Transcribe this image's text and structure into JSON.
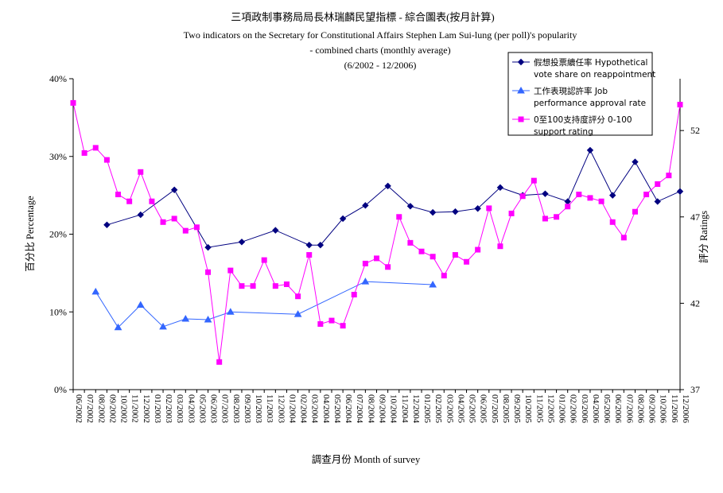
{
  "chart_data": {
    "type": "line",
    "title": "三項政制事務局局長林瑞麟民望指標 - 綜合圖表(按月計算)",
    "subtitle_lines": [
      "Two indicators on the Secretary for Constitutional Affairs Stephen Lam Sui-lung (per poll)'s popularity",
      "- combined charts (monthly average)",
      "(6/2002 - 12/2006)"
    ],
    "xlabel": "調查月份 Month of survey",
    "ylabel_left": "百分比 Percentage",
    "ylabel_right": "評分 Ratings",
    "y_left": {
      "min": 0,
      "max": 40,
      "ticks": [
        "0%",
        "10%",
        "20%",
        "30%",
        "40%"
      ],
      "tick_values": [
        0,
        10,
        20,
        30,
        40
      ]
    },
    "y_right": {
      "min": 37,
      "max": 55,
      "ticks": [
        "37",
        "42",
        "47",
        "52"
      ],
      "tick_values": [
        37,
        42,
        47,
        52
      ]
    },
    "grid": false,
    "legend_position": "top-right",
    "categories": [
      "06/2002",
      "07/2002",
      "08/2002",
      "09/2002",
      "10/2002",
      "11/2002",
      "12/2002",
      "01/2003",
      "02/2003",
      "03/2003",
      "04/2003",
      "05/2003",
      "06/2003",
      "07/2003",
      "08/2003",
      "09/2003",
      "10/2003",
      "11/2003",
      "12/2003",
      "01/2004",
      "02/2004",
      "03/2004",
      "04/2004",
      "05/2004",
      "06/2004",
      "07/2004",
      "08/2004",
      "09/2004",
      "10/2004",
      "11/2004",
      "12/2004",
      "01/2005",
      "02/2005",
      "03/2005",
      "04/2005",
      "05/2005",
      "06/2005",
      "07/2005",
      "08/2005",
      "09/2005",
      "10/2005",
      "11/2005",
      "12/2005",
      "01/2006",
      "02/2006",
      "03/2006",
      "04/2006",
      "05/2006",
      "06/2006",
      "07/2006",
      "08/2006",
      "09/2006",
      "10/2006",
      "11/2006",
      "12/2006"
    ],
    "series": [
      {
        "name": "假想投票續任率 Hypothetical vote share on reappointment",
        "axis": "left",
        "color": "#000080",
        "marker": "diamond",
        "values": [
          null,
          null,
          null,
          21.2,
          null,
          null,
          22.5,
          null,
          null,
          25.7,
          null,
          null,
          18.3,
          null,
          null,
          19,
          null,
          null,
          20.5,
          null,
          null,
          18.6,
          18.6,
          null,
          22,
          null,
          23.7,
          null,
          26.2,
          null,
          23.6,
          null,
          22.8,
          null,
          22.9,
          null,
          23.3,
          null,
          26,
          null,
          25,
          null,
          25.2,
          null,
          24.2,
          null,
          30.8,
          null,
          25,
          null,
          29.3,
          null,
          24.2,
          null,
          25.5
        ]
      },
      {
        "name": "工作表現認許率 Job performance approval rate",
        "axis": "left",
        "color": "#3366ff",
        "marker": "triangle",
        "values": [
          null,
          null,
          12.6,
          null,
          8,
          null,
          10.9,
          null,
          8.1,
          null,
          9.1,
          null,
          9,
          null,
          10,
          null,
          null,
          null,
          null,
          null,
          9.7,
          null,
          null,
          null,
          null,
          null,
          13.9,
          null,
          null,
          null,
          null,
          null,
          13.5,
          null,
          null,
          null,
          null,
          null,
          null,
          null,
          null,
          null,
          null,
          null,
          null,
          null,
          null,
          null,
          null,
          null,
          null,
          null,
          null,
          null,
          null
        ]
      },
      {
        "name": "0至100支持度評分 0-100 support rating",
        "axis": "right",
        "color": "#ff00ff",
        "marker": "square",
        "values": [
          53.6,
          50.7,
          51,
          50.3,
          48.3,
          47.9,
          49.6,
          47.9,
          46.7,
          46.9,
          46.2,
          46.4,
          43.8,
          38.6,
          43.9,
          43,
          43,
          44.5,
          43,
          43.1,
          42.4,
          44.8,
          40.8,
          41,
          40.7,
          42.5,
          44.3,
          44.6,
          44.1,
          47,
          45.5,
          45,
          44.7,
          43.6,
          44.8,
          44.4,
          45.1,
          47.5,
          45.3,
          47.2,
          48.2,
          49.1,
          46.9,
          47,
          47.6,
          48.3,
          48.1,
          47.9,
          46.7,
          45.8,
          47.3,
          48.3,
          48.9,
          49.4,
          53.5
        ]
      }
    ]
  }
}
